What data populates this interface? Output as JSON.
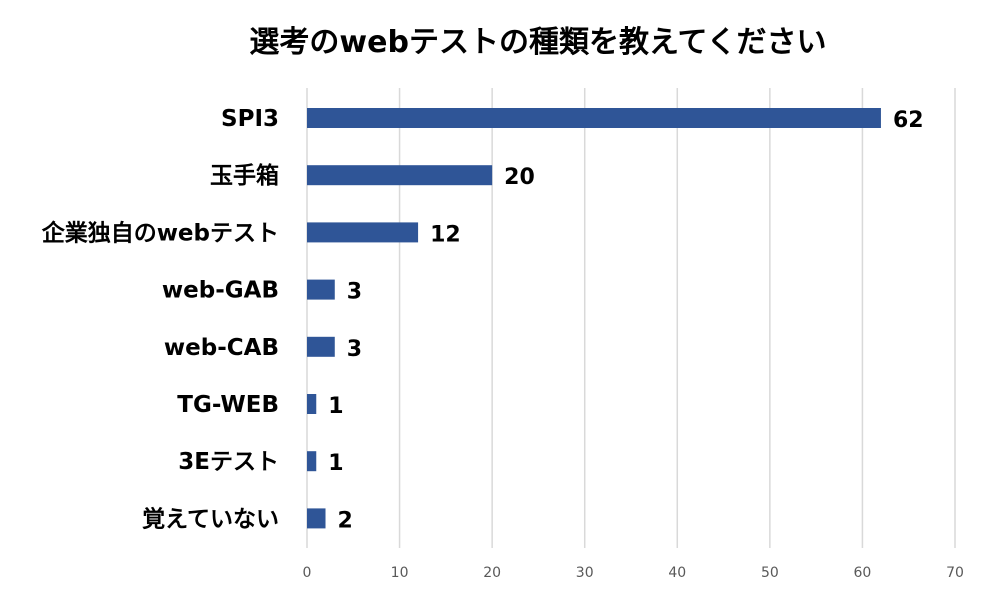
{
  "chart_data": {
    "type": "bar",
    "orientation": "horizontal",
    "title": "選考のwebテストの種類を教えてください",
    "categories": [
      "SPI3",
      "玉手箱",
      "企業独自のwebテスト",
      "web-GAB",
      "web-CAB",
      "TG-WEB",
      "3Eテスト",
      "覚えていない"
    ],
    "values": [
      62,
      20,
      12,
      3,
      3,
      1,
      1,
      2
    ],
    "data_labels": [
      "62",
      "20",
      "12",
      "3",
      "3",
      "1",
      "1",
      "2"
    ],
    "xticks": [
      "0",
      "10",
      "20",
      "30",
      "40",
      "50",
      "60",
      "70"
    ],
    "xlim": [
      0,
      70
    ],
    "xlabel": "",
    "ylabel": "",
    "grid": true,
    "legend": "none",
    "bar_color": "#2F5597",
    "grid_color": "#d9d9d9",
    "tick_color": "#595959"
  }
}
